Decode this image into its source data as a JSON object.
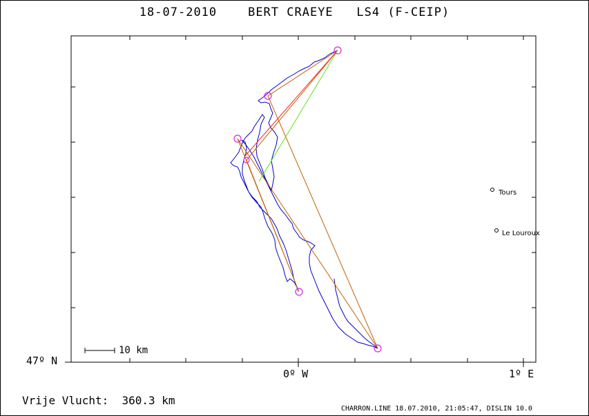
{
  "title": "18-07-2010    BERT CRAEYE   LS4 (F-CEIP)",
  "axes": {
    "lat_label": "47º N",
    "lon_labels": [
      "0º W",
      "1º E"
    ]
  },
  "scale_bar": {
    "label": "10 km"
  },
  "cities": [
    {
      "name": "Tours"
    },
    {
      "name": "Le Louroux"
    }
  ],
  "distance": "Vrije Vlucht:  360.3 km",
  "footer": "CHARRON.LINE 18.07.2010, 21:05:47, DISLIN 10.0",
  "colors": {
    "track": "#0000c8",
    "legs": "#c06000",
    "alt_leg": "#ff2020",
    "green_leg": "#60e020",
    "turnpoint": "#e020e0"
  }
}
